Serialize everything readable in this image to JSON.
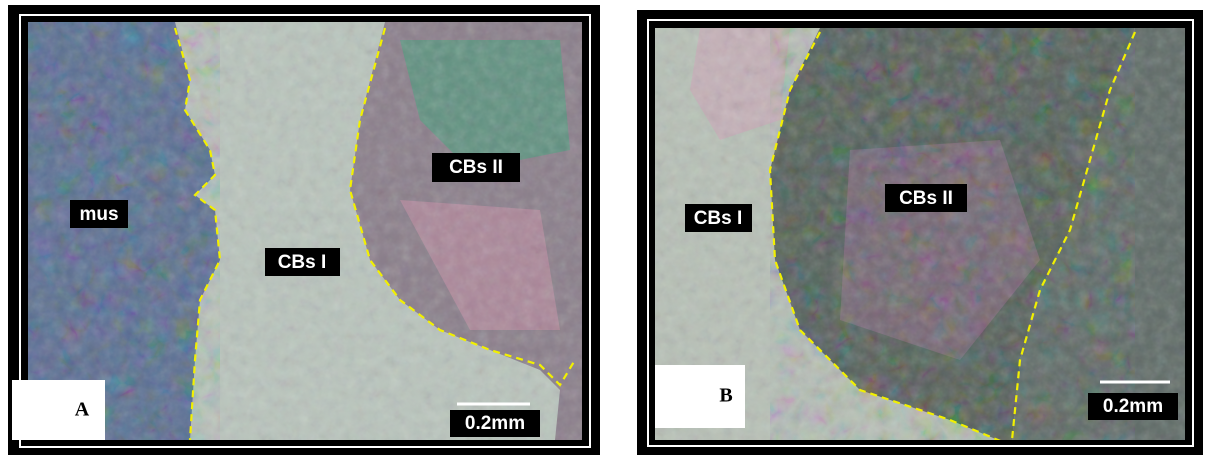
{
  "panels": [
    {
      "letter": "A",
      "labels": [
        "mus",
        "CBs I",
        "CBs II"
      ],
      "scale": "0.2mm"
    },
    {
      "letter": "B",
      "labels": [
        "CBs I",
        "CBs II"
      ],
      "scale": "0.2mm"
    }
  ]
}
